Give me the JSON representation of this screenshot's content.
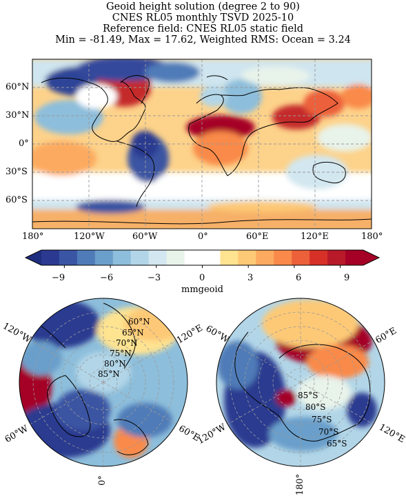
{
  "title": {
    "line1": "Geoid height solution (degree 2 to 90)",
    "line2": "CNES RL05 monthly TSVD 2025-10",
    "line3": "Reference field: CNES RL05 static field",
    "line4": "Min = -81.49, Max = 17.62, Weighted RMS: Ocean = 3.24"
  },
  "map": {
    "lat_ticks": [
      "60°N",
      "30°N",
      "0°",
      "30°S",
      "60°S"
    ],
    "lon_ticks": [
      "180°",
      "120°W",
      "60°W",
      "0°",
      "60°E",
      "120°E",
      "180°"
    ],
    "grid": true
  },
  "colorbar": {
    "ticks": [
      "−9",
      "−6",
      "−3",
      "0",
      "3",
      "6",
      "9"
    ],
    "label": "mmgeoid",
    "colors": [
      "#2b3a90",
      "#3a55a3",
      "#4f7cb8",
      "#6b9fcb",
      "#8dbedb",
      "#b2d6e8",
      "#d2e7f0",
      "#e8f3ea",
      "#ffffff",
      "#ffffff",
      "#fee391",
      "#fdc976",
      "#fcaa5f",
      "#f98a4a",
      "#ec603a",
      "#d73027",
      "#b81a2a",
      "#a50026"
    ],
    "extend": "both"
  },
  "north_polar": {
    "lat_labels": [
      "60°N",
      "65°N",
      "70°N",
      "75°N",
      "80°N",
      "85°N"
    ],
    "lon_labels": [
      "120°W",
      "120°E",
      "60°W",
      "60°E",
      "0°"
    ]
  },
  "south_polar": {
    "lat_labels": [
      "85°S",
      "80°S",
      "75°S",
      "70°S",
      "65°S"
    ],
    "lon_labels": [
      "60°W",
      "60°E",
      "120°W",
      "120°E",
      "180°"
    ]
  }
}
